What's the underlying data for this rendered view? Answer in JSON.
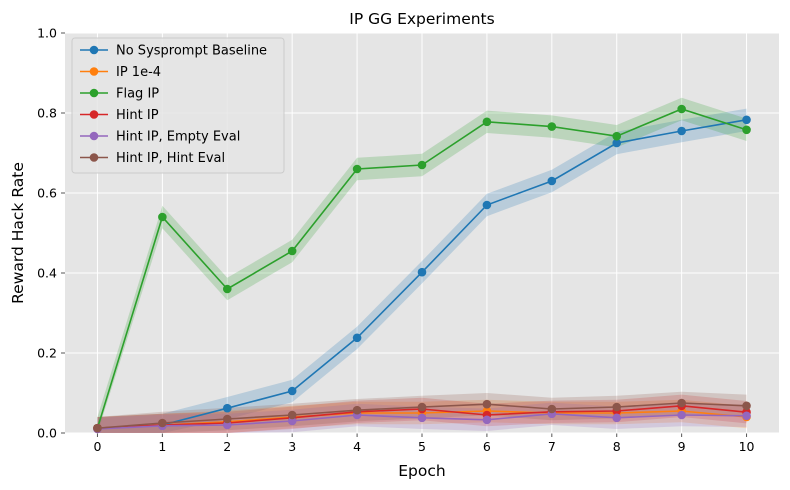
{
  "chart_data": {
    "type": "line",
    "title": "IP GG Experiments",
    "xlabel": "Epoch",
    "ylabel": "Reward Hack Rate",
    "xlim": [
      -0.5,
      10.5
    ],
    "ylim": [
      0,
      1.0
    ],
    "x": [
      0,
      1,
      2,
      3,
      4,
      5,
      6,
      7,
      8,
      9,
      10
    ],
    "x_ticks": [
      "0",
      "1",
      "2",
      "3",
      "4",
      "5",
      "6",
      "7",
      "8",
      "9",
      "10"
    ],
    "y_ticks": [
      "0.0",
      "0.2",
      "0.4",
      "0.6",
      "0.8",
      "1.0"
    ],
    "y_tick_values": [
      0,
      0.2,
      0.4,
      0.6,
      0.8,
      1.0
    ],
    "grid": true,
    "legend_position": "top-left",
    "band_halfwidth": 0.028,
    "series": [
      {
        "name": "No Sysprompt Baseline",
        "color": "#1f77b4",
        "values": [
          0.012,
          0.02,
          0.062,
          0.105,
          0.238,
          0.402,
          0.57,
          0.63,
          0.725,
          0.755,
          0.783
        ]
      },
      {
        "name": "IP 1e-4",
        "color": "#ff7f0e",
        "values": [
          0.012,
          0.02,
          0.028,
          0.04,
          0.05,
          0.05,
          0.055,
          0.05,
          0.05,
          0.055,
          0.04
        ]
      },
      {
        "name": "Flag IP",
        "color": "#2ca02c",
        "values": [
          0.012,
          0.54,
          0.36,
          0.455,
          0.66,
          0.67,
          0.778,
          0.766,
          0.742,
          0.81,
          0.758
        ]
      },
      {
        "name": "Hint IP",
        "color": "#d62728",
        "values": [
          0.012,
          0.02,
          0.025,
          0.038,
          0.053,
          0.06,
          0.045,
          0.053,
          0.055,
          0.068,
          0.052
        ]
      },
      {
        "name": "Hint IP, Empty Eval",
        "color": "#9467bd",
        "values": [
          0.01,
          0.018,
          0.02,
          0.03,
          0.045,
          0.038,
          0.033,
          0.048,
          0.038,
          0.045,
          0.043
        ]
      },
      {
        "name": "Hint IP, Hint Eval",
        "color": "#8c564b",
        "values": [
          0.012,
          0.025,
          0.035,
          0.045,
          0.057,
          0.065,
          0.072,
          0.06,
          0.065,
          0.075,
          0.068
        ]
      }
    ]
  }
}
